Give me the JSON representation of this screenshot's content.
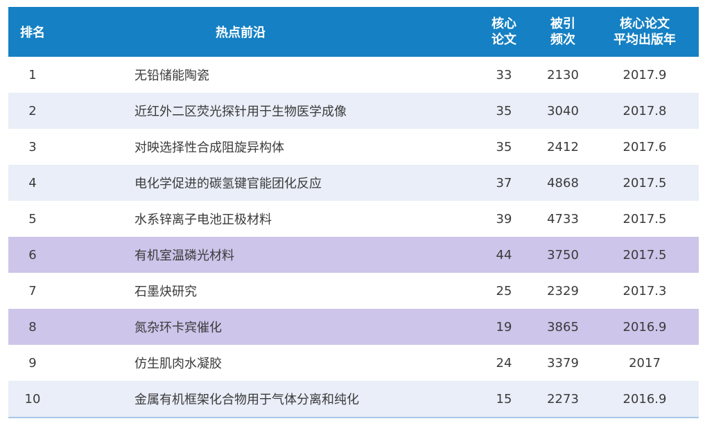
{
  "header": {
    "rank": "排名",
    "topic": "热点前沿",
    "core_line1": "核心",
    "core_line2": "论文",
    "cite_line1": "被引",
    "cite_line2": "频次",
    "year_line1": "核心论文",
    "year_line2": "平均出版年"
  },
  "colors": {
    "header_bg": "#1580c3",
    "row_alt": "#e9eef8",
    "row_highlight": "#cdc5ea"
  },
  "rows": [
    {
      "rank": "1",
      "topic": "无铅储能陶瓷",
      "core": "33",
      "citations": "2130",
      "year": "2017.9",
      "style": "white"
    },
    {
      "rank": "2",
      "topic": "近红外二区荧光探针用于生物医学成像",
      "core": "35",
      "citations": "3040",
      "year": "2017.8",
      "style": "blue"
    },
    {
      "rank": "3",
      "topic": "对映选择性合成阻旋异构体",
      "core": "35",
      "citations": "2412",
      "year": "2017.6",
      "style": "white"
    },
    {
      "rank": "4",
      "topic": "电化学促进的碳氢键官能团化反应",
      "core": "37",
      "citations": "4868",
      "year": "2017.5",
      "style": "blue"
    },
    {
      "rank": "5",
      "topic": "水系锌离子电池正极材料",
      "core": "39",
      "citations": "4733",
      "year": "2017.5",
      "style": "white"
    },
    {
      "rank": "6",
      "topic": "有机室温磷光材料",
      "core": "44",
      "citations": "3750",
      "year": "2017.5",
      "style": "purple"
    },
    {
      "rank": "7",
      "topic": "石墨炔研究",
      "core": "25",
      "citations": "2329",
      "year": "2017.3",
      "style": "white"
    },
    {
      "rank": "8",
      "topic": "氮杂环卡宾催化",
      "core": "19",
      "citations": "3865",
      "year": "2016.9",
      "style": "purple"
    },
    {
      "rank": "9",
      "topic": "仿生肌肉水凝胶",
      "core": "24",
      "citations": "3379",
      "year": "2017",
      "style": "white"
    },
    {
      "rank": "10",
      "topic": "金属有机框架化合物用于气体分离和纯化",
      "core": "15",
      "citations": "2273",
      "year": "2016.9",
      "style": "blue"
    }
  ]
}
